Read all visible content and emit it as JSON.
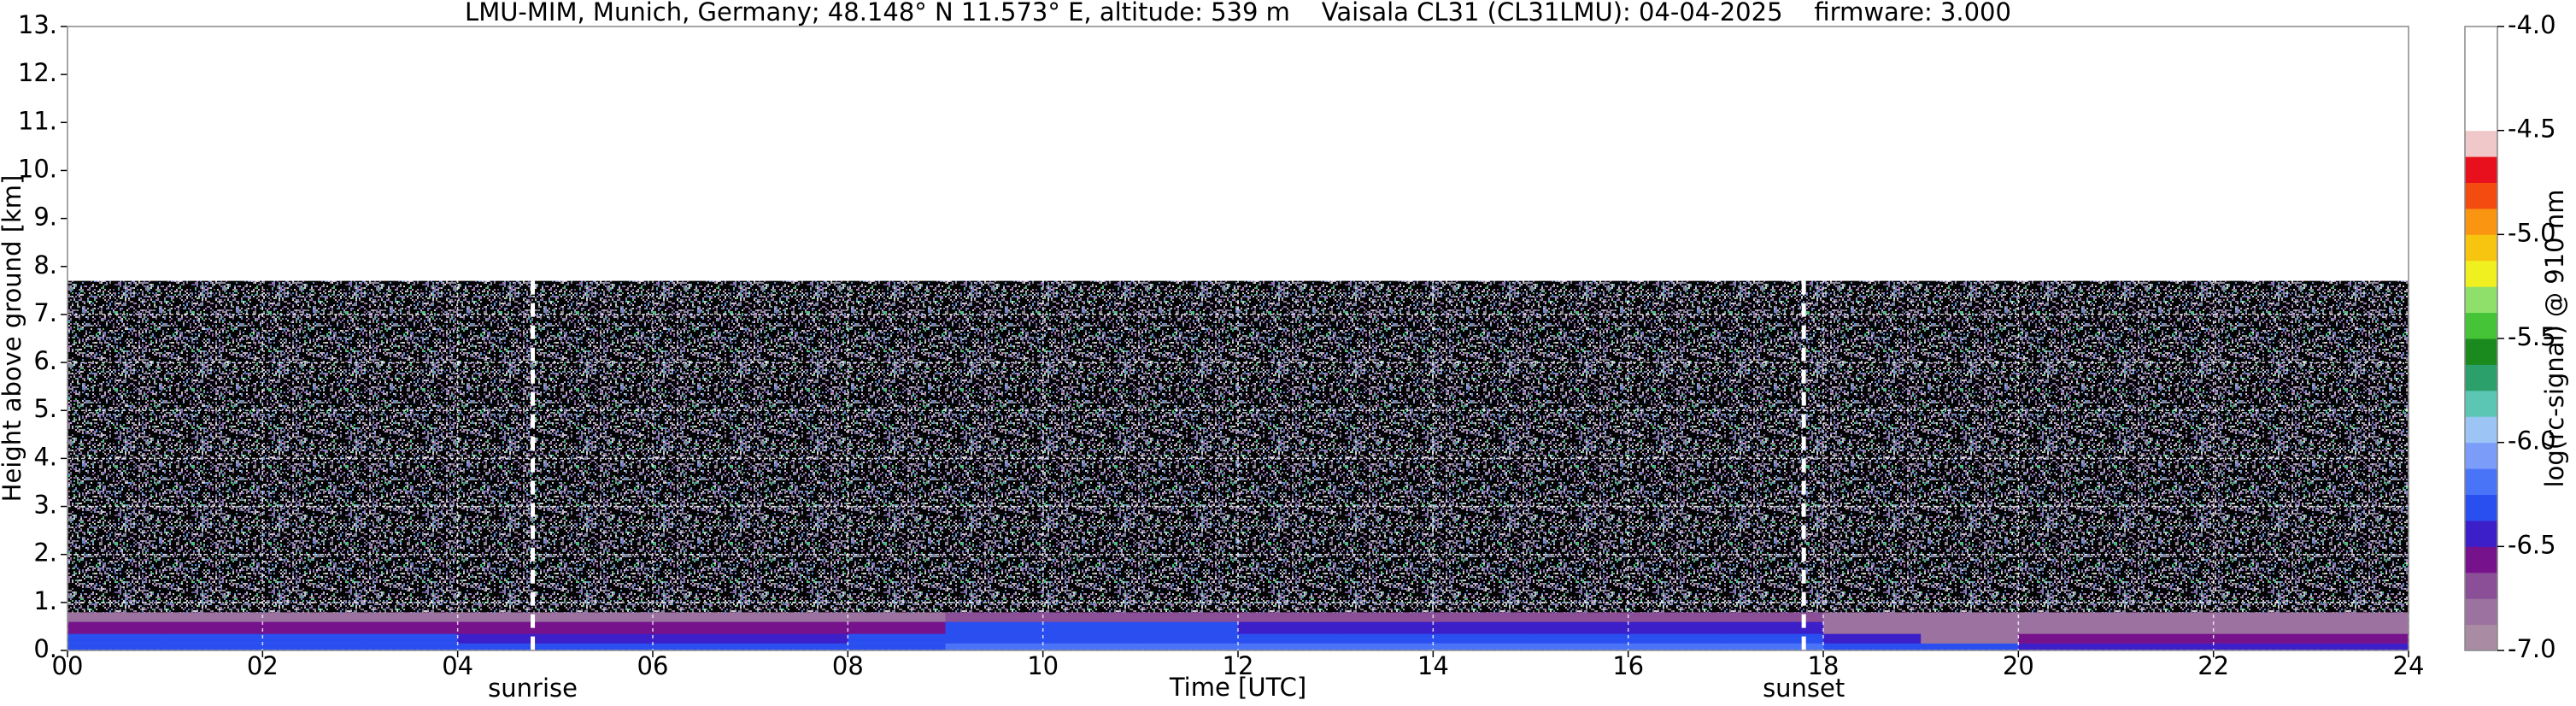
{
  "chart_data": {
    "type": "heatmap",
    "title": "LMU-MIM, Munich, Germany; 48.148° N 11.573° E, altitude: 539 m    Vaisala CL31 (CL31LMU): 04-04-2025    firmware: 3.000",
    "x_label": "Time [UTC]",
    "y_label": "Height above ground [km]",
    "xlim": [
      0,
      24
    ],
    "xticks": [
      {
        "value": 0,
        "label": "00"
      },
      {
        "value": 2,
        "label": "02"
      },
      {
        "value": 4,
        "label": "04"
      },
      {
        "value": 6,
        "label": "06"
      },
      {
        "value": 8,
        "label": "08"
      },
      10,
      12,
      14,
      16,
      18,
      20,
      22,
      24
    ],
    "ylim": [
      0,
      13
    ],
    "yticks": [
      {
        "value": 0,
        "label": "0."
      },
      {
        "value": 1,
        "label": "1."
      },
      {
        "value": 2,
        "label": "2."
      },
      {
        "value": 3,
        "label": "3."
      },
      {
        "value": 4,
        "label": "4."
      },
      {
        "value": 5,
        "label": "5."
      },
      {
        "value": 6,
        "label": "6."
      },
      {
        "value": 7,
        "label": "7."
      },
      {
        "value": 8,
        "label": "8."
      },
      {
        "value": 9,
        "label": "9."
      },
      {
        "value": 10,
        "label": "10."
      },
      {
        "value": 11,
        "label": "11."
      },
      {
        "value": 12,
        "label": "12."
      },
      {
        "value": 13,
        "label": "13."
      }
    ],
    "grid": true,
    "x_edges": [
      0,
      1,
      2,
      3,
      4,
      5,
      6,
      7,
      8,
      9,
      10,
      11,
      12,
      13,
      14,
      15,
      16,
      17,
      18,
      19,
      20,
      21,
      22,
      23,
      24
    ],
    "y_edges": [
      0,
      0.15,
      0.35,
      0.6,
      0.8,
      7.7
    ],
    "z": [
      [
        -6.3,
        -6.3,
        -6.3,
        -6.3,
        -6.3,
        -6.3,
        -6.3,
        -6.3,
        -6.3,
        -6.25,
        -6.25,
        -6.25,
        -6.25,
        -6.25,
        -6.25,
        -6.25,
        -6.25,
        -6.25,
        -6.3,
        -6.35,
        -6.4,
        -6.4,
        -6.4,
        -6.4
      ],
      [
        -6.3,
        -6.3,
        -6.3,
        -6.35,
        -6.4,
        -6.4,
        -6.4,
        -6.4,
        -6.35,
        -6.3,
        -6.3,
        -6.3,
        -6.35,
        -6.35,
        -6.35,
        -6.35,
        -6.35,
        -6.35,
        -6.5,
        -6.8,
        -6.55,
        -6.55,
        -6.55,
        -6.55
      ],
      [
        -6.55,
        -6.55,
        -6.55,
        -6.55,
        -6.6,
        -6.6,
        -6.6,
        -6.6,
        -6.6,
        -6.3,
        -6.3,
        -6.3,
        -6.5,
        -6.5,
        -6.5,
        -6.5,
        -6.5,
        -6.5,
        -6.8,
        -6.8,
        -6.8,
        -6.8,
        -6.8,
        -6.8
      ],
      [
        -6.8,
        -6.8,
        -6.8,
        -6.8,
        -6.8,
        -6.8,
        -6.8,
        -6.8,
        -6.8,
        -6.7,
        -6.7,
        -6.7,
        -6.75,
        -6.75,
        -6.75,
        -6.75,
        -6.75,
        -6.75,
        -6.85,
        -6.85,
        -6.85,
        -6.85,
        -6.85,
        -6.85
      ],
      [
        null,
        null,
        null,
        null,
        null,
        null,
        null,
        null,
        null,
        null,
        null,
        null,
        null,
        null,
        null,
        null,
        null,
        null,
        null,
        null,
        null,
        null,
        null,
        null
      ]
    ],
    "annotations": [
      {
        "text": "sunrise",
        "x": 4.77
      },
      {
        "text": "sunset",
        "x": 17.8
      }
    ],
    "colorbar": {
      "label": "log(rc-signal) @ 910 nm",
      "clim": [
        -7,
        -4
      ],
      "ticks": [
        {
          "value": -7,
          "label": "-7.0"
        },
        -6.5,
        {
          "value": -6,
          "label": "-6.0"
        },
        -5.5,
        {
          "value": -5,
          "label": "-5.0"
        },
        -4.5,
        {
          "value": -4,
          "label": "-4.0"
        }
      ],
      "colors": [
        "#a98ba3",
        "#9b72a0",
        "#8a4f97",
        "#76128c",
        "#3c1fc9",
        "#2a4ff0",
        "#4a74f7",
        "#7b9cf9",
        "#9cc5f5",
        "#5cc6b4",
        "#2ca06a",
        "#1a8a1e",
        "#45c437",
        "#8ee06a",
        "#f0f020",
        "#f7c410",
        "#f99510",
        "#f44b10",
        "#e8101c",
        "#f1c8ca",
        "#ffffff",
        "#ffffff",
        "#ffffff",
        "#ffffff"
      ]
    }
  }
}
